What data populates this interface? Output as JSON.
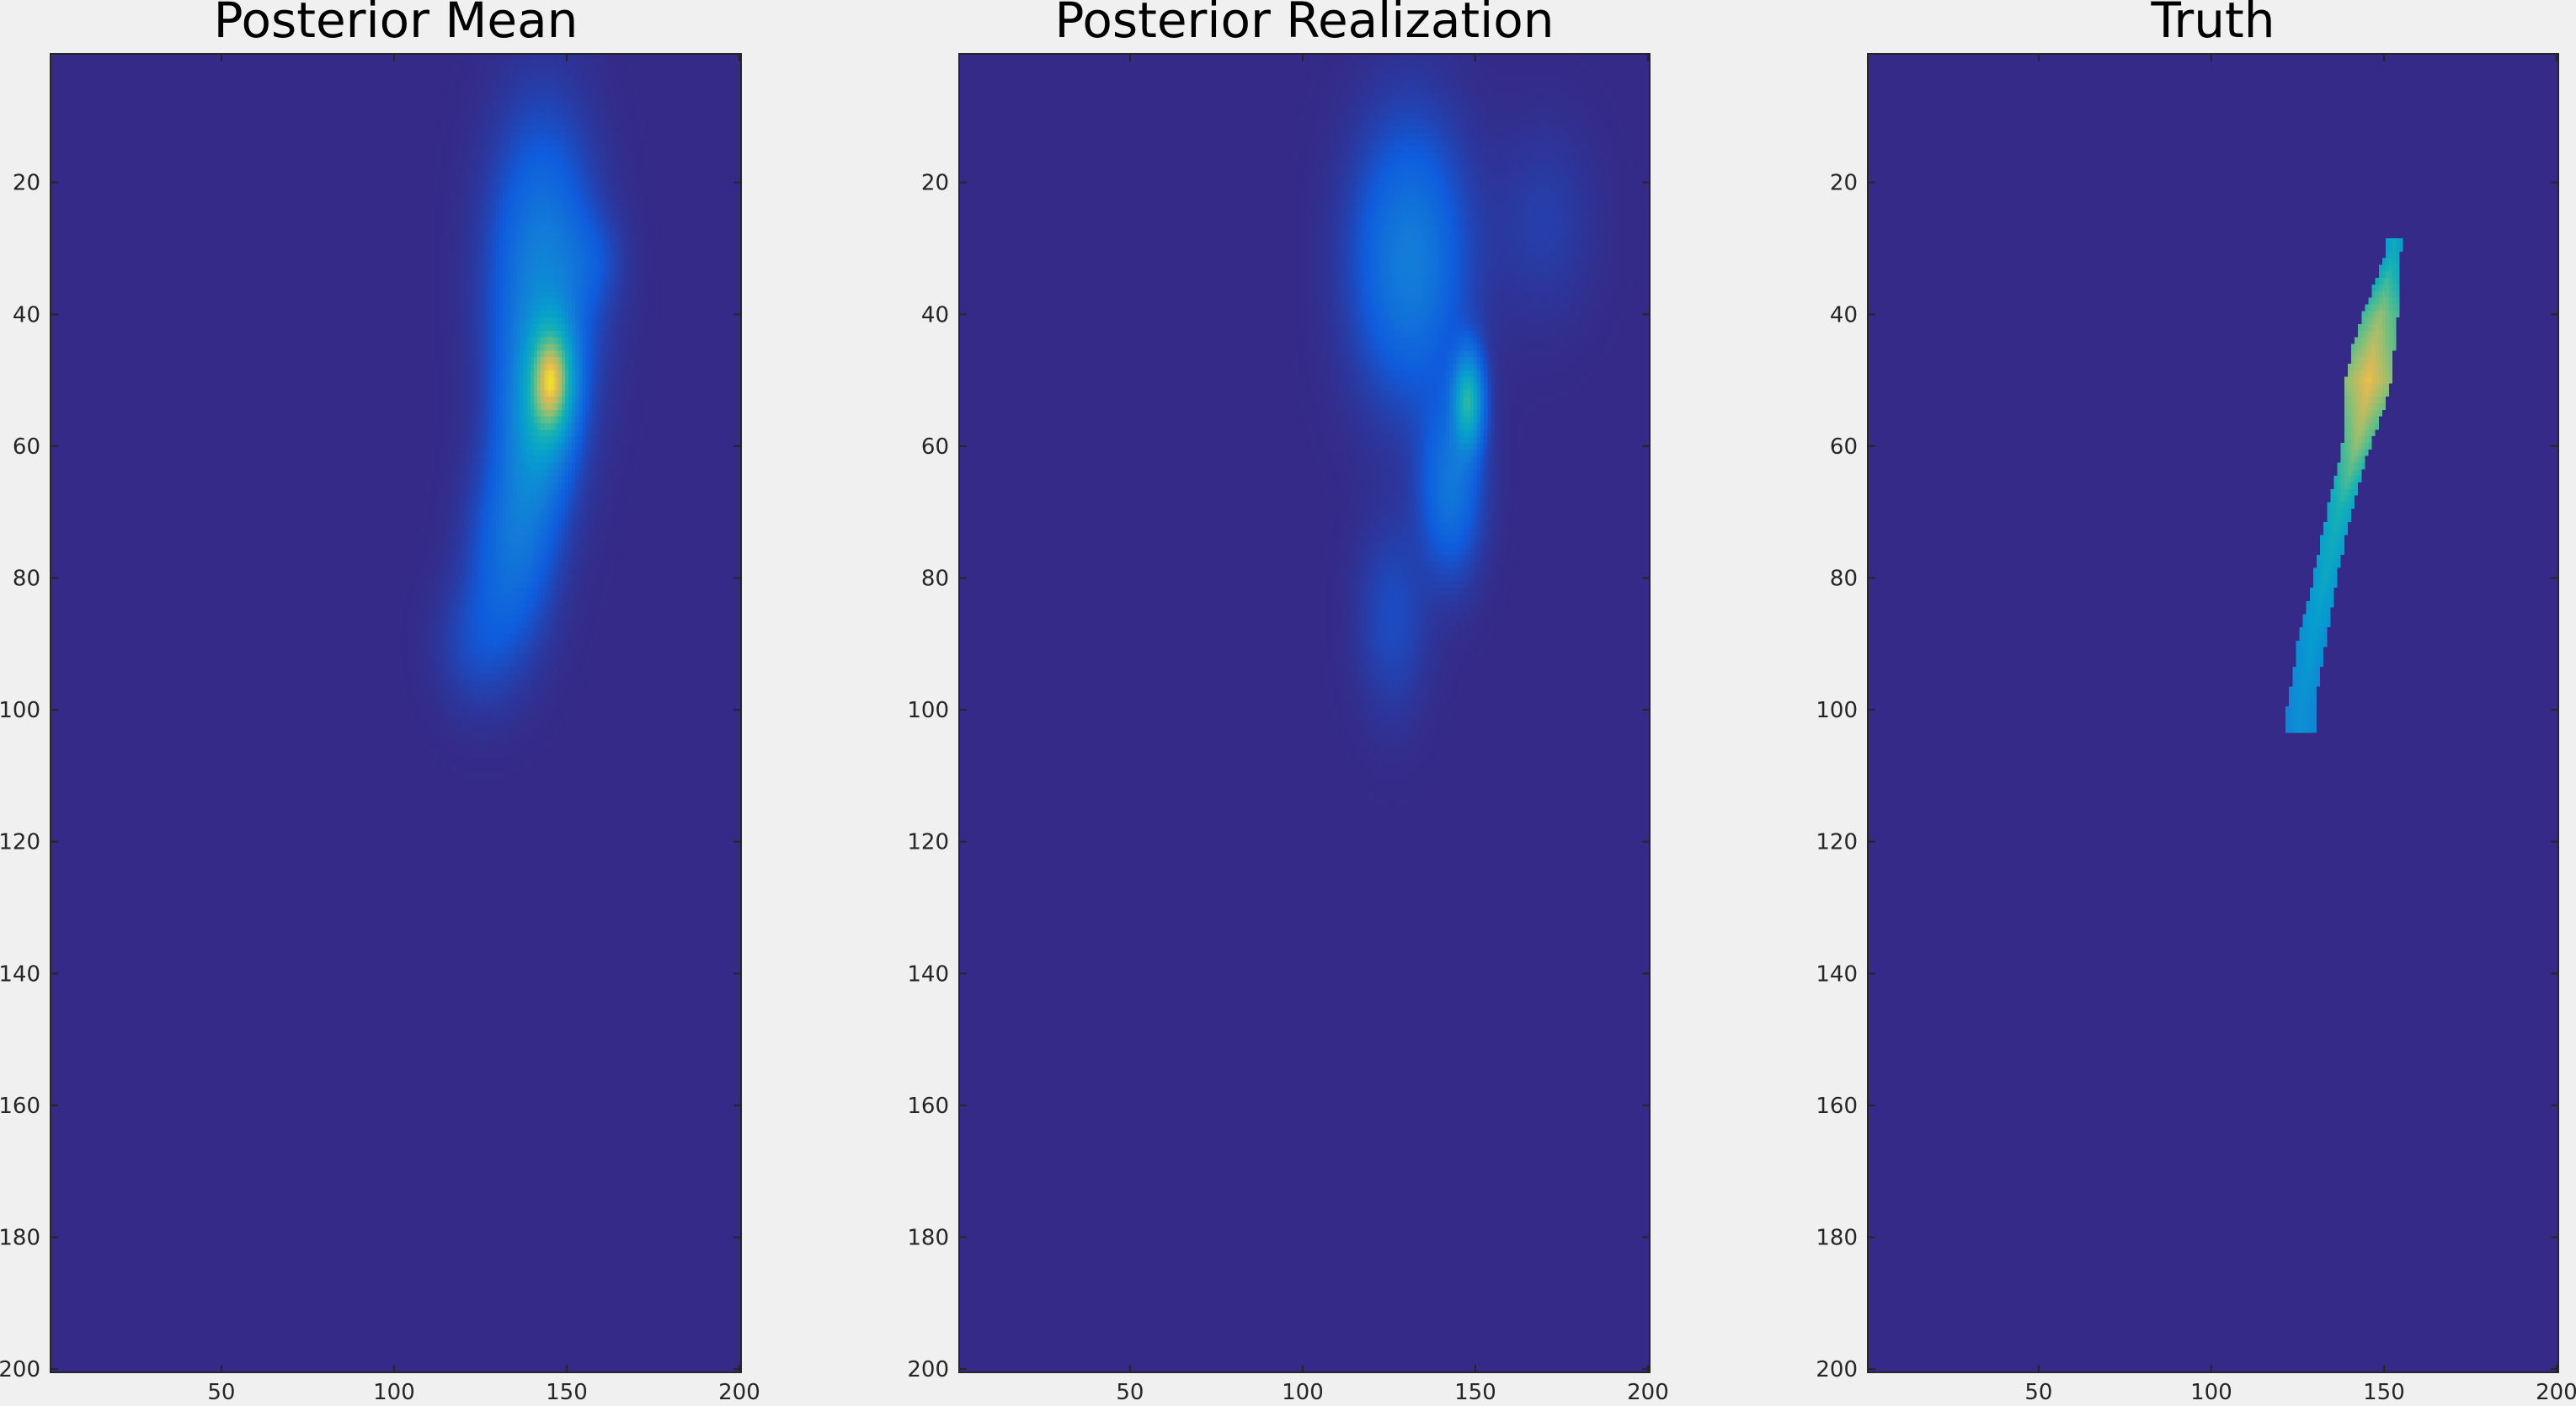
{
  "figure": {
    "background": "#f0f0f0",
    "colormap": "parula"
  },
  "chart_data": [
    {
      "type": "heatmap",
      "title": "Posterior Mean",
      "xlim": [
        0.5,
        200.5
      ],
      "ylim": [
        0.5,
        200.5
      ],
      "y_reversed": true,
      "xticks": [
        50,
        100,
        150,
        200
      ],
      "yticks": [
        20,
        40,
        60,
        80,
        100,
        120,
        140,
        160,
        180,
        200
      ],
      "background_value": 0,
      "background_color": "#352a87",
      "peak_color": "#f9c830",
      "hotspots": [
        {
          "x": 143,
          "y": 35,
          "sx": 10,
          "sy": 16,
          "v": 0.32
        },
        {
          "x": 146,
          "y": 50,
          "sx": 4.5,
          "sy": 6,
          "v": 0.58
        },
        {
          "x": 141,
          "y": 58,
          "sx": 7,
          "sy": 10,
          "v": 0.3
        },
        {
          "x": 134,
          "y": 76,
          "sx": 8,
          "sy": 10,
          "v": 0.22
        },
        {
          "x": 124,
          "y": 90,
          "sx": 8,
          "sy": 7,
          "v": 0.09
        },
        {
          "x": 158,
          "y": 32,
          "sx": 6,
          "sy": 5,
          "v": 0.07
        }
      ]
    },
    {
      "type": "heatmap",
      "title": "Posterior Realization",
      "xlim": [
        0.5,
        200.5
      ],
      "ylim": [
        0.5,
        200.5
      ],
      "y_reversed": true,
      "xticks": [
        50,
        100,
        150,
        200
      ],
      "yticks": [
        20,
        40,
        60,
        80,
        100,
        120,
        140,
        160,
        180,
        200
      ],
      "background_value": 0,
      "background_color": "#352a87",
      "peak_color": "#f9c830",
      "hotspots": [
        {
          "x": 131,
          "y": 32,
          "sx": 11,
          "sy": 14,
          "v": 0.3
        },
        {
          "x": 148,
          "y": 53,
          "sx": 3,
          "sy": 5,
          "v": 0.55
        },
        {
          "x": 143,
          "y": 66,
          "sx": 6,
          "sy": 9,
          "v": 0.26
        },
        {
          "x": 126,
          "y": 86,
          "sx": 7,
          "sy": 10,
          "v": 0.1
        },
        {
          "x": 170,
          "y": 26,
          "sx": 10,
          "sy": 10,
          "v": 0.06
        }
      ]
    },
    {
      "type": "heatmap",
      "title": "Truth",
      "xlim": [
        0.5,
        200.5
      ],
      "ylim": [
        0.5,
        200.5
      ],
      "y_reversed": true,
      "xticks": [
        50,
        100,
        150,
        200
      ],
      "yticks": [
        20,
        40,
        60,
        80,
        100,
        120,
        140,
        160,
        180,
        200
      ],
      "background_value": 0,
      "background_color": "#352a87",
      "peak_color": "#f9c830",
      "plume": {
        "y_range": [
          29,
          103
        ],
        "center": [
          [
            30,
            153
          ],
          [
            45,
            147
          ],
          [
            52,
            145
          ],
          [
            60,
            142
          ],
          [
            70,
            137
          ],
          [
            80,
            133
          ],
          [
            90,
            129
          ],
          [
            100,
            126
          ]
        ],
        "half_width": [
          [
            30,
            2
          ],
          [
            40,
            5
          ],
          [
            50,
            7
          ],
          [
            60,
            4
          ],
          [
            70,
            3.5
          ],
          [
            80,
            3.5
          ],
          [
            90,
            4
          ],
          [
            100,
            4
          ]
        ],
        "value": [
          [
            30,
            0.55
          ],
          [
            40,
            0.8
          ],
          [
            50,
            0.92
          ],
          [
            60,
            0.8
          ],
          [
            70,
            0.6
          ],
          [
            80,
            0.52
          ],
          [
            90,
            0.45
          ],
          [
            100,
            0.4
          ]
        ]
      }
    }
  ]
}
